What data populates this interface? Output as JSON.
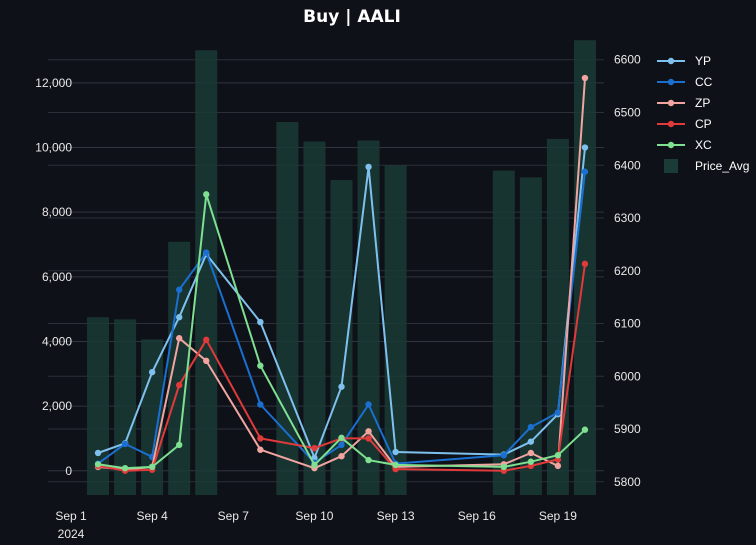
{
  "chart_data": {
    "type": "bar+line",
    "title": "Buy | AALI",
    "x_ticks": [
      {
        "date": "2024-09-01",
        "label": "Sep 1",
        "sublabel": "2024"
      },
      {
        "date": "2024-09-04",
        "label": "Sep 4"
      },
      {
        "date": "2024-09-07",
        "label": "Sep 7"
      },
      {
        "date": "2024-09-10",
        "label": "Sep 10"
      },
      {
        "date": "2024-09-13",
        "label": "Sep 13"
      },
      {
        "date": "2024-09-16",
        "label": "Sep 16"
      },
      {
        "date": "2024-09-19",
        "label": "Sep 19"
      }
    ],
    "y_left": {
      "ticks": [
        "0",
        "2,000",
        "4,000",
        "6,000",
        "8,000",
        "10,000",
        "12,000"
      ],
      "range": [
        -750,
        13450
      ]
    },
    "y_right": {
      "ticks": [
        "5800",
        "5900",
        "6000",
        "6100",
        "6200",
        "6300",
        "6400",
        "6500",
        "6600"
      ],
      "range": [
        5775,
        6645
      ]
    },
    "grid": true,
    "legend_position": "top-right",
    "bars": {
      "name": "Price_Avg",
      "color": "#1a3b36",
      "dates": [
        "2024-09-02",
        "2024-09-03",
        "2024-09-04",
        "2024-09-05",
        "2024-09-06",
        "2024-09-09",
        "2024-09-10",
        "2024-09-11",
        "2024-09-12",
        "2024-09-13",
        "2024-09-17",
        "2024-09-18",
        "2024-09-19",
        "2024-09-20"
      ],
      "values": [
        6112,
        6108,
        6070,
        6255,
        6618,
        6482,
        6445,
        6372,
        6447,
        6400,
        6390,
        6377,
        6450,
        6637
      ]
    },
    "series": [
      {
        "name": "YP",
        "color": "#7fc1ee",
        "dates": [
          "2024-09-02",
          "2024-09-03",
          "2024-09-04",
          "2024-09-05",
          "2024-09-06",
          "2024-09-08",
          "2024-09-10",
          "2024-09-11",
          "2024-09-12",
          "2024-09-13",
          "2024-09-17",
          "2024-09-18",
          "2024-09-19",
          "2024-09-20"
        ],
        "values": [
          550,
          850,
          3050,
          4750,
          6700,
          4600,
          400,
          2600,
          9400,
          580,
          500,
          900,
          1750,
          10000
        ]
      },
      {
        "name": "CC",
        "color": "#1a6fd1",
        "dates": [
          "2024-09-02",
          "2024-09-03",
          "2024-09-04",
          "2024-09-05",
          "2024-09-06",
          "2024-09-08",
          "2024-09-10",
          "2024-09-11",
          "2024-09-12",
          "2024-09-13",
          "2024-09-17",
          "2024-09-18",
          "2024-09-19",
          "2024-09-20"
        ],
        "values": [
          220,
          830,
          430,
          5600,
          6750,
          2050,
          250,
          800,
          2050,
          220,
          480,
          1350,
          1800,
          9250
        ]
      },
      {
        "name": "ZP",
        "color": "#f2a5a0",
        "dates": [
          "2024-09-02",
          "2024-09-03",
          "2024-09-04",
          "2024-09-05",
          "2024-09-06",
          "2024-09-08",
          "2024-09-10",
          "2024-09-11",
          "2024-09-12",
          "2024-09-13",
          "2024-09-17",
          "2024-09-18",
          "2024-09-19",
          "2024-09-20"
        ],
        "values": [
          120,
          30,
          120,
          4100,
          3400,
          650,
          80,
          450,
          1220,
          120,
          200,
          550,
          150,
          12150
        ]
      },
      {
        "name": "CP",
        "color": "#e03a3a",
        "dates": [
          "2024-09-02",
          "2024-09-03",
          "2024-09-04",
          "2024-09-05",
          "2024-09-06",
          "2024-09-08",
          "2024-09-10",
          "2024-09-11",
          "2024-09-12",
          "2024-09-13",
          "2024-09-17",
          "2024-09-18",
          "2024-09-19",
          "2024-09-20"
        ],
        "values": [
          150,
          0,
          30,
          2650,
          4050,
          1000,
          700,
          1000,
          1000,
          50,
          0,
          150,
          350,
          6400
        ]
      },
      {
        "name": "XC",
        "color": "#7ee090",
        "dates": [
          "2024-09-02",
          "2024-09-03",
          "2024-09-04",
          "2024-09-05",
          "2024-09-06",
          "2024-09-08",
          "2024-09-10",
          "2024-09-11",
          "2024-09-12",
          "2024-09-13",
          "2024-09-17",
          "2024-09-18",
          "2024-09-19",
          "2024-09-20"
        ],
        "values": [
          200,
          80,
          120,
          800,
          8550,
          3250,
          180,
          1020,
          330,
          180,
          120,
          280,
          480,
          1270
        ]
      }
    ]
  }
}
